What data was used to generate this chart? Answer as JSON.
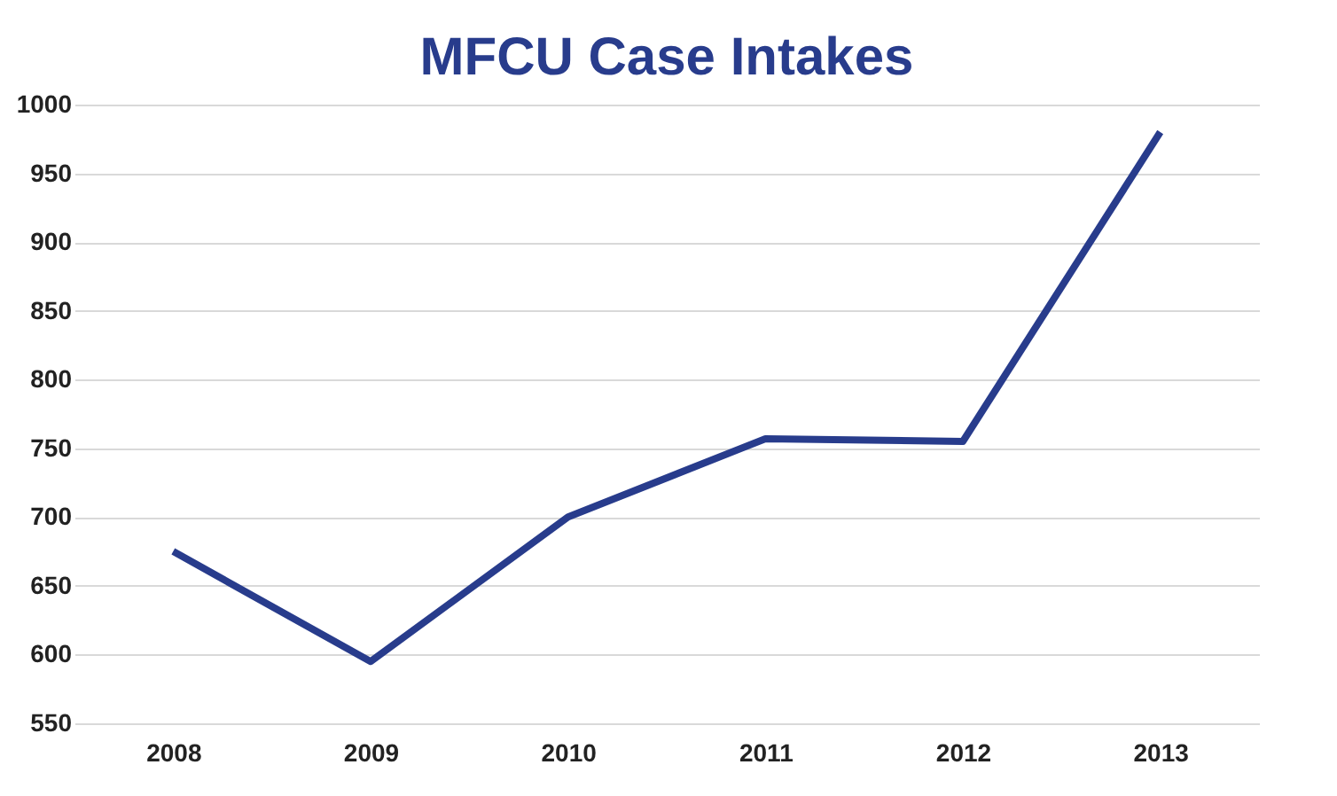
{
  "chart_data": {
    "type": "line",
    "title": "MFCU Case Intakes",
    "categories": [
      "2008",
      "2009",
      "2010",
      "2011",
      "2012",
      "2013"
    ],
    "series": [
      {
        "color": "#283c8c",
        "values": [
          675,
          595,
          700,
          757,
          755,
          980
        ]
      }
    ],
    "ylim": [
      550,
      1000
    ],
    "yticks": [
      550,
      600,
      650,
      700,
      750,
      800,
      850,
      900,
      950,
      1000
    ],
    "grid": "y",
    "line_style": "solid",
    "marker": "none"
  }
}
